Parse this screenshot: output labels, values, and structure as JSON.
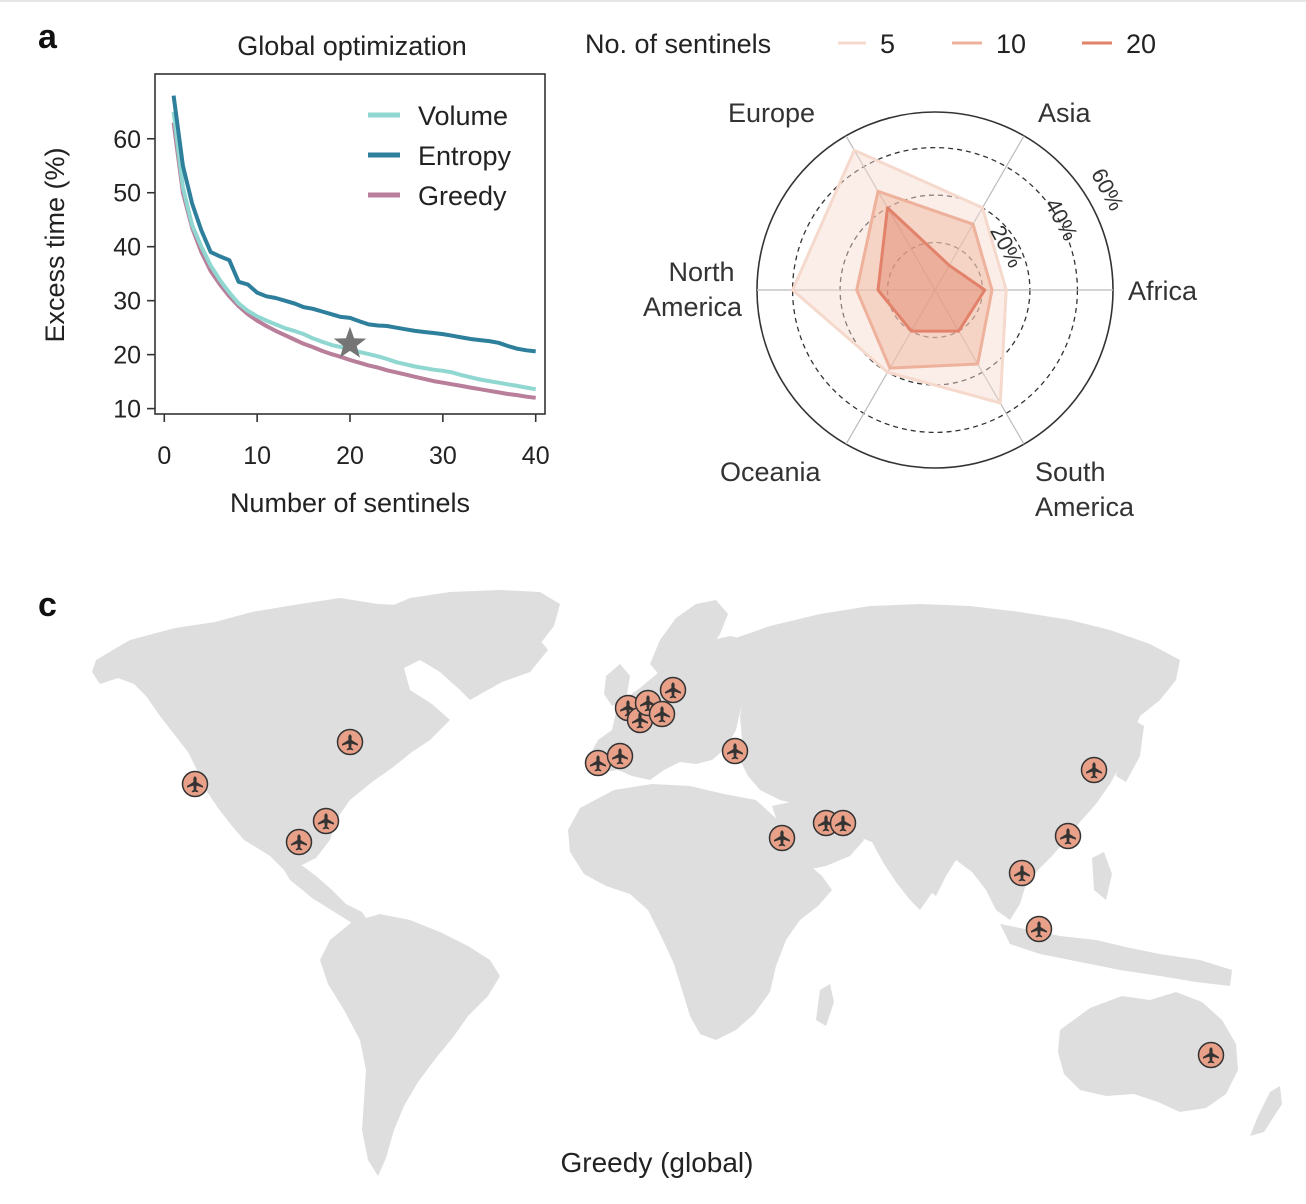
{
  "panels": {
    "a_label": "a",
    "c_label": "c"
  },
  "line_chart": {
    "title": "Global optimization",
    "xlabel": "Number of sentinels",
    "ylabel": "Excess time (%)",
    "xticks": [
      "0",
      "10",
      "20",
      "30",
      "40"
    ],
    "yticks": [
      "10",
      "20",
      "30",
      "40",
      "50",
      "60"
    ],
    "legend": [
      "Volume",
      "Entropy",
      "Greedy"
    ]
  },
  "radar_chart": {
    "legend_title": "No. of sentinels",
    "legend": [
      "5",
      "10",
      "20"
    ],
    "axes": [
      "Africa",
      "Asia",
      "Europe",
      "North America",
      "Oceania",
      "South America"
    ],
    "ring_labels": [
      "20%",
      "40%",
      "60%"
    ]
  },
  "map": {
    "caption": "Greedy (global)",
    "marker_icon": "airplane-icon",
    "land_color": "#dedede",
    "marker_color": "#e8a088"
  },
  "colors": {
    "volume": "#8fd7d0",
    "entropy": "#2e7f9c",
    "greedy": "#b87e9a",
    "star": "#757575",
    "radar": [
      "#f6d9cd",
      "#eeb29c",
      "#e2826a"
    ]
  },
  "chart_data": [
    {
      "type": "line",
      "title": "Global optimization",
      "xlabel": "Number of sentinels",
      "ylabel": "Excess time (%)",
      "xlim": [
        -1,
        41
      ],
      "ylim": [
        9,
        72
      ],
      "series": [
        {
          "name": "Volume",
          "x": [
            1,
            2,
            3,
            4,
            5,
            6,
            7,
            8,
            9,
            10,
            11,
            12,
            13,
            14,
            15,
            16,
            17,
            18,
            19,
            20,
            21,
            22,
            23,
            24,
            25,
            26,
            27,
            28,
            29,
            30,
            31,
            32,
            33,
            34,
            35,
            36,
            37,
            38,
            39,
            40
          ],
          "values": [
            65,
            51,
            44,
            40,
            36.5,
            33.8,
            31.5,
            29.5,
            28.1,
            27.1,
            26.3,
            25.6,
            24.9,
            24.4,
            23.8,
            23.0,
            22.4,
            21.8,
            21.4,
            21.0,
            20.5,
            20.1,
            19.7,
            19.2,
            18.6,
            18.2,
            17.8,
            17.5,
            17.2,
            17.0,
            16.7,
            16.2,
            15.8,
            15.4,
            15.1,
            14.8,
            14.5,
            14.2,
            13.9,
            13.6
          ]
        },
        {
          "name": "Entropy",
          "x": [
            1,
            2,
            3,
            4,
            5,
            6,
            7,
            8,
            9,
            10,
            11,
            12,
            13,
            14,
            15,
            16,
            17,
            18,
            19,
            20,
            21,
            22,
            23,
            24,
            25,
            26,
            27,
            28,
            29,
            30,
            31,
            32,
            33,
            34,
            35,
            36,
            37,
            38,
            39,
            40
          ],
          "values": [
            68,
            55,
            48,
            43,
            39,
            38.2,
            37.5,
            33.5,
            33,
            31.5,
            30.8,
            30.5,
            30,
            29.5,
            28.8,
            28.5,
            28,
            27.5,
            27,
            26.8,
            26.2,
            25.6,
            25.4,
            25.3,
            25,
            24.7,
            24.4,
            24.2,
            24,
            23.8,
            23.5,
            23.2,
            22.9,
            22.7,
            22.5,
            22.2,
            21.6,
            21.1,
            20.8,
            20.6
          ]
        },
        {
          "name": "Greedy",
          "x": [
            1,
            2,
            3,
            4,
            5,
            6,
            7,
            8,
            9,
            10,
            11,
            12,
            13,
            14,
            15,
            16,
            17,
            18,
            19,
            20,
            21,
            22,
            23,
            24,
            25,
            26,
            27,
            28,
            29,
            30,
            31,
            32,
            33,
            34,
            35,
            36,
            37,
            38,
            39,
            40
          ],
          "values": [
            63,
            50,
            43.5,
            39,
            35.5,
            33,
            30.8,
            29,
            27.5,
            26.3,
            25.3,
            24.4,
            23.6,
            22.8,
            22,
            21.4,
            20.7,
            20.1,
            19.6,
            19,
            18.5,
            18,
            17.6,
            17.1,
            16.7,
            16.3,
            15.9,
            15.5,
            15.1,
            14.8,
            14.5,
            14.2,
            13.9,
            13.6,
            13.3,
            13,
            12.7,
            12.5,
            12.2,
            12
          ]
        }
      ],
      "annotations": [
        {
          "marker": "star",
          "x": 20,
          "y": 22
        }
      ]
    },
    {
      "type": "radar",
      "axes": [
        "Africa",
        "Asia",
        "Europe",
        "North America",
        "Oceania",
        "South America"
      ],
      "rmax": 75,
      "rings": [
        20,
        40,
        60
      ],
      "legend_title": "No. of sentinels",
      "series": [
        {
          "name": "5",
          "values": [
            30,
            40,
            68,
            60,
            40,
            55
          ]
        },
        {
          "name": "10",
          "values": [
            24,
            32,
            48,
            33,
            38,
            36
          ]
        },
        {
          "name": "20",
          "values": [
            21,
            12,
            40,
            24,
            20,
            20
          ]
        }
      ]
    }
  ]
}
